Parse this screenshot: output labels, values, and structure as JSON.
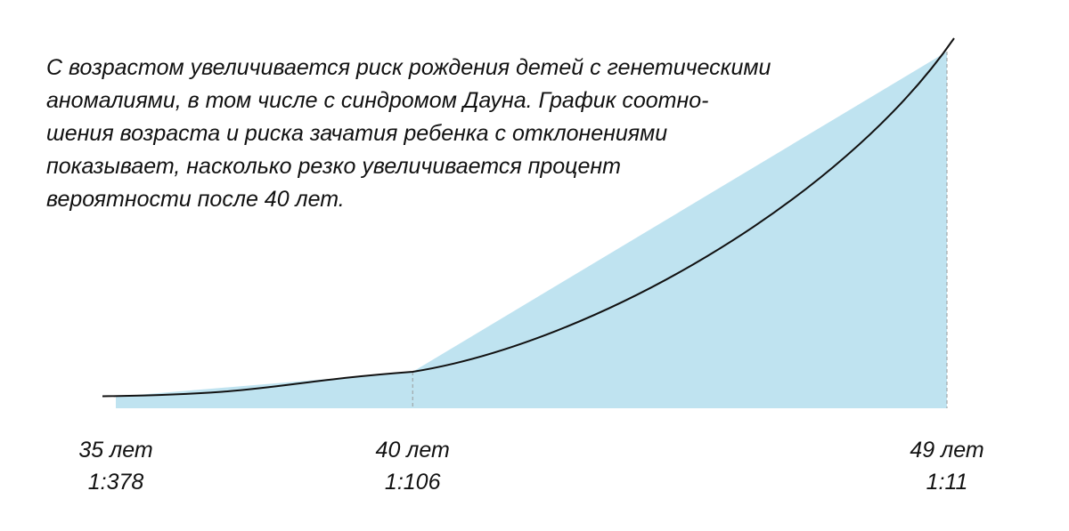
{
  "caption": "С возрастом увеличивается риск рождения детей с генетическими\nаномалиями, в том числе с синдромом Дауна. График соотно-\nшения возраста и риска зачатия ребенка с отклонениями\nпоказывает, насколько резко увеличивается процент\nвероятности после 40 лет.",
  "chart_data": {
    "type": "area",
    "title": "",
    "xlabel": "",
    "ylabel": "",
    "grid": false,
    "legend": "none",
    "points": [
      {
        "age": 35,
        "age_label": "35 лет",
        "risk_label": "1:378",
        "risk": 0.00265
      },
      {
        "age": 40,
        "age_label": "40 лет",
        "risk_label": "1:106",
        "risk": 0.00943
      },
      {
        "age": 49,
        "age_label": "49 лет",
        "risk_label": "1:11",
        "risk": 0.0909
      }
    ],
    "colors": {
      "area": "#bfe3f0",
      "curve": "#111111",
      "guide": "#9a9a9a"
    }
  }
}
